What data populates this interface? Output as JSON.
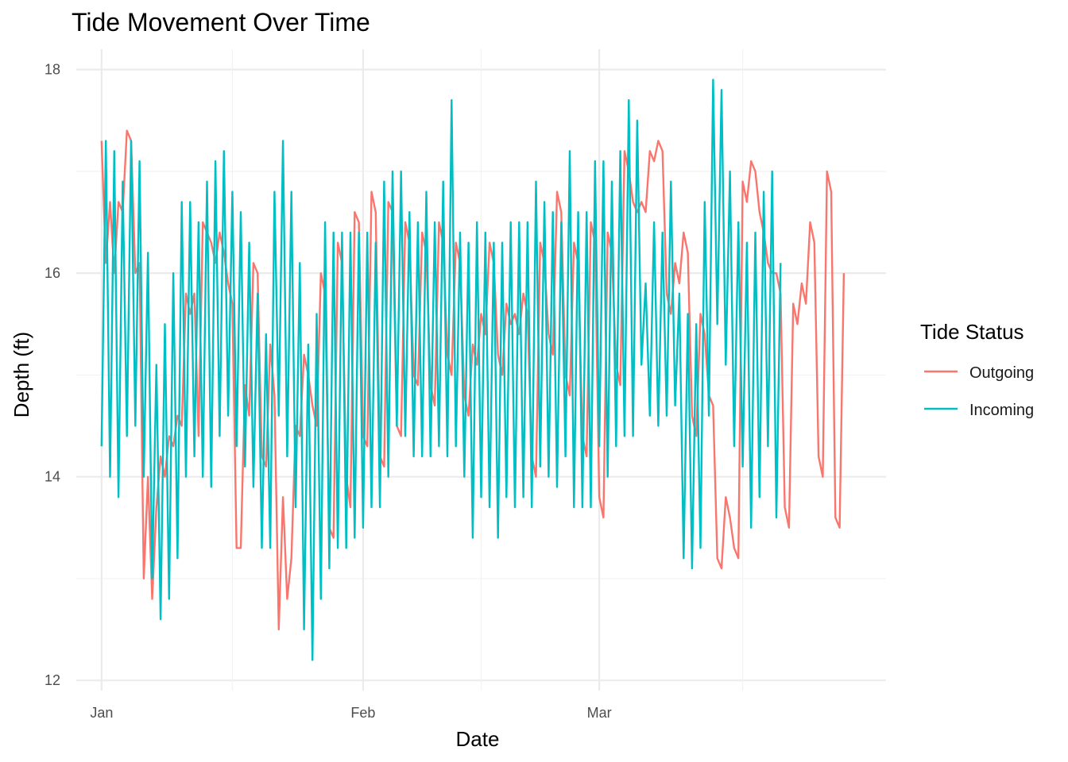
{
  "chart_data": {
    "type": "line",
    "title": "Tide Movement Over Time",
    "xlabel": "Date",
    "ylabel": "Depth (ft)",
    "x_ticks": [
      {
        "label": "Jan",
        "date": "2023-01-01"
      },
      {
        "label": "Feb",
        "date": "2023-02-01"
      },
      {
        "label": "Mar",
        "date": "2023-03-01"
      }
    ],
    "x_range": [
      "2022-12-29",
      "2023-04-04"
    ],
    "y_ticks": [
      12,
      14,
      16,
      18
    ],
    "ylim": [
      11.9,
      18.2
    ],
    "grid": true,
    "legend": {
      "title": "Tide Status",
      "position": "right",
      "entries": [
        {
          "name": "Outgoing",
          "color": "#F8766D"
        },
        {
          "name": "Incoming",
          "color": "#00BFC4"
        }
      ]
    },
    "sampling": "twice daily (00:00 and 12:00), 2023-01-01 through 2023-03-27",
    "series": [
      {
        "name": "Outgoing",
        "color": "#F8766D",
        "values": [
          17.3,
          16.1,
          16.7,
          16.0,
          16.7,
          16.6,
          17.4,
          17.3,
          16.0,
          16.1,
          13.0,
          14.0,
          12.8,
          13.7,
          14.2,
          14.0,
          14.4,
          14.3,
          14.6,
          14.5,
          15.8,
          15.6,
          15.8,
          14.4,
          16.5,
          16.4,
          16.3,
          16.1,
          16.4,
          16.2,
          15.9,
          15.7,
          13.3,
          13.3,
          14.9,
          14.6,
          16.1,
          16.0,
          14.2,
          14.1,
          15.3,
          14.8,
          12.5,
          13.8,
          12.8,
          13.2,
          14.5,
          14.4,
          15.2,
          15.0,
          14.7,
          14.5,
          16.0,
          15.8,
          13.5,
          13.4,
          16.3,
          16.1,
          14.0,
          13.7,
          16.6,
          16.5,
          14.4,
          14.3,
          16.8,
          16.6,
          14.2,
          14.1,
          16.7,
          16.6,
          14.5,
          14.4,
          16.5,
          16.3,
          15.0,
          14.9,
          16.4,
          16.2,
          14.9,
          14.7,
          16.5,
          16.3,
          15.2,
          15.0,
          16.3,
          16.1,
          14.8,
          14.6,
          15.3,
          15.1,
          15.6,
          15.4,
          16.3,
          16.1,
          15.2,
          15.0,
          15.7,
          15.5,
          15.6,
          15.4,
          15.8,
          15.6,
          14.2,
          14.0,
          16.3,
          16.1,
          15.4,
          15.2,
          16.8,
          16.6,
          15.0,
          14.8,
          16.3,
          16.1,
          14.4,
          14.2,
          16.5,
          16.3,
          13.8,
          13.6,
          16.4,
          16.2,
          15.1,
          14.9,
          17.2,
          17.0,
          16.7,
          16.6,
          16.7,
          16.6,
          17.2,
          17.1,
          17.3,
          17.2,
          15.8,
          15.6,
          16.1,
          15.9,
          16.4,
          16.2,
          14.6,
          14.4,
          15.6,
          15.4,
          14.8,
          14.7,
          13.2,
          13.1,
          13.8,
          13.6,
          13.3,
          13.2,
          16.9,
          16.7,
          17.1,
          17.0,
          16.6,
          16.4,
          16.1,
          16.0,
          16.0,
          15.8,
          13.7,
          13.5,
          15.7,
          15.5,
          15.9,
          15.7,
          16.5,
          16.3,
          14.2,
          14.0,
          17.0,
          16.8,
          13.6,
          13.5,
          16.0
        ]
      },
      {
        "name": "Incoming",
        "color": "#00BFC4",
        "values": [
          14.3,
          17.3,
          14.0,
          17.2,
          13.8,
          16.9,
          14.4,
          17.3,
          14.5,
          17.1,
          14.0,
          16.2,
          13.0,
          15.1,
          12.6,
          15.5,
          12.8,
          16.0,
          13.2,
          16.7,
          14.0,
          16.7,
          14.2,
          16.5,
          14.0,
          16.9,
          13.9,
          17.1,
          14.4,
          17.2,
          14.6,
          16.8,
          14.3,
          16.6,
          14.1,
          16.3,
          13.9,
          15.8,
          13.3,
          15.4,
          13.3,
          16.8,
          14.6,
          17.3,
          14.2,
          16.8,
          13.7,
          16.1,
          12.5,
          15.3,
          12.2,
          15.6,
          12.8,
          16.5,
          13.1,
          16.4,
          13.3,
          16.4,
          13.3,
          16.4,
          13.4,
          16.4,
          13.5,
          16.4,
          13.7,
          16.3,
          13.7,
          16.9,
          14.0,
          17.0,
          14.5,
          17.0,
          14.4,
          16.6,
          14.2,
          16.5,
          14.2,
          16.8,
          14.2,
          16.5,
          14.3,
          16.9,
          14.2,
          17.7,
          14.3,
          16.4,
          14.0,
          16.3,
          13.4,
          16.5,
          13.8,
          16.4,
          13.7,
          16.3,
          13.4,
          16.3,
          13.8,
          16.5,
          13.7,
          16.5,
          13.8,
          16.5,
          13.7,
          16.9,
          14.1,
          16.7,
          14.0,
          16.6,
          13.9,
          16.5,
          14.2,
          17.2,
          13.7,
          16.6,
          13.7,
          16.6,
          13.7,
          17.1,
          14.3,
          17.1,
          14.0,
          16.9,
          14.3,
          17.2,
          14.4,
          17.7,
          14.4,
          17.5,
          15.1,
          15.9,
          14.6,
          16.5,
          14.5,
          16.4,
          14.6,
          16.9,
          14.7,
          15.8,
          13.2,
          15.6,
          13.1,
          15.5,
          13.3,
          16.7,
          14.6,
          17.9,
          15.5,
          17.8,
          15.1,
          17.0,
          14.3,
          16.5,
          14.1,
          16.3,
          13.5,
          16.4,
          13.8,
          16.8,
          14.3,
          17.0,
          13.6,
          16.1
        ]
      }
    ]
  }
}
